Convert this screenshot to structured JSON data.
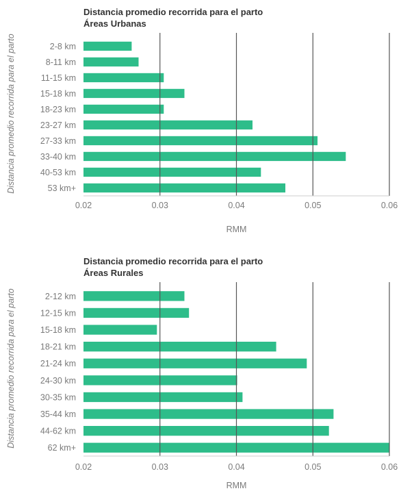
{
  "chart_data": [
    {
      "type": "bar",
      "orientation": "horizontal",
      "title": "Distancia promedio recorrida para el parto",
      "subtitle": "Áreas Urbanas",
      "xlabel": "RMM",
      "ylabel": "Distancia promedio recorrida para el parto",
      "xlim": [
        0.02,
        0.06
      ],
      "xticks": [
        "0.02",
        "0.03",
        "0.04",
        "0.05",
        "0.06"
      ],
      "grid": "vertical lines",
      "color": "#2ebd8a",
      "categories": [
        "2-8  km",
        "8-11 km",
        "11-15 km",
        "15-18 km",
        "18-23 km",
        "23-27 km",
        "27-33 km",
        "33-40 km",
        "40-53 km",
        "53 km+"
      ],
      "values": [
        0.0263,
        0.0272,
        0.0305,
        0.0332,
        0.0305,
        0.0421,
        0.0506,
        0.0543,
        0.0432,
        0.0464
      ]
    },
    {
      "type": "bar",
      "orientation": "horizontal",
      "title": "Distancia promedio recorrida para el parto",
      "subtitle": "Áreas Rurales",
      "xlabel": "RMM",
      "ylabel": "Distancia promedio recorrida para el parto",
      "xlim": [
        0.02,
        0.06
      ],
      "xticks": [
        "0.02",
        "0.03",
        "0.04",
        "0.05",
        "0.06"
      ],
      "grid": "vertical lines",
      "color": "#2ebd8a",
      "categories": [
        "2-12  km",
        "12-15 km",
        "15-18 km",
        "18-21 km",
        "21-24 km",
        "24-30 km",
        "30-35 km",
        "35-44 km",
        "44-62 km",
        "62 km+"
      ],
      "values": [
        0.0332,
        0.0338,
        0.0296,
        0.0452,
        0.0492,
        0.0401,
        0.0408,
        0.0527,
        0.0521,
        0.06
      ]
    }
  ]
}
